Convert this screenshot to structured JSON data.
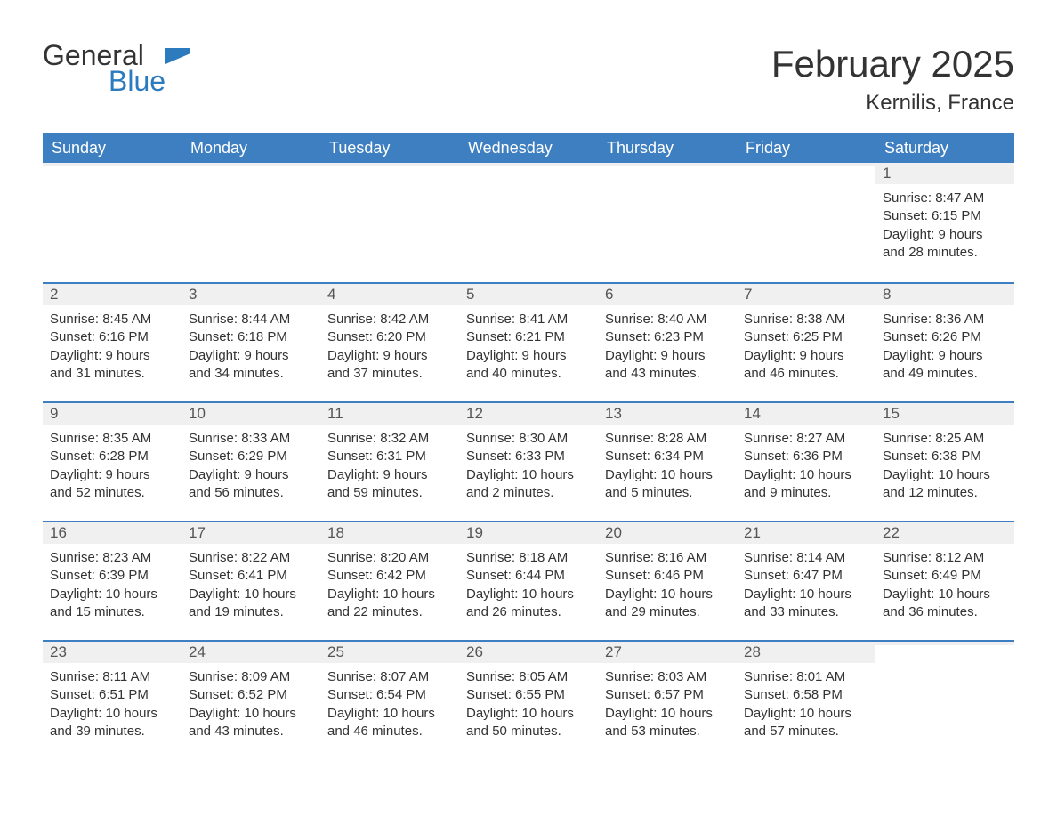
{
  "brand": {
    "name1": "General",
    "name2": "Blue",
    "icon_color": "#2c7bbf"
  },
  "title": {
    "month": "February 2025",
    "location": "Kernilis, France"
  },
  "colors": {
    "header_bg": "#3d7fc1",
    "header_fg": "#ffffff",
    "daynum_bg": "#f0f0f0",
    "daynum_border": "#3d7fc1",
    "text": "#333333",
    "background": "#ffffff"
  },
  "day_headers": [
    "Sunday",
    "Monday",
    "Tuesday",
    "Wednesday",
    "Thursday",
    "Friday",
    "Saturday"
  ],
  "weeks": [
    [
      {
        "day": "",
        "sunrise": "",
        "sunset": "",
        "daylight1": "",
        "daylight2": ""
      },
      {
        "day": "",
        "sunrise": "",
        "sunset": "",
        "daylight1": "",
        "daylight2": ""
      },
      {
        "day": "",
        "sunrise": "",
        "sunset": "",
        "daylight1": "",
        "daylight2": ""
      },
      {
        "day": "",
        "sunrise": "",
        "sunset": "",
        "daylight1": "",
        "daylight2": ""
      },
      {
        "day": "",
        "sunrise": "",
        "sunset": "",
        "daylight1": "",
        "daylight2": ""
      },
      {
        "day": "",
        "sunrise": "",
        "sunset": "",
        "daylight1": "",
        "daylight2": ""
      },
      {
        "day": "1",
        "sunrise": "Sunrise: 8:47 AM",
        "sunset": "Sunset: 6:15 PM",
        "daylight1": "Daylight: 9 hours",
        "daylight2": "and 28 minutes."
      }
    ],
    [
      {
        "day": "2",
        "sunrise": "Sunrise: 8:45 AM",
        "sunset": "Sunset: 6:16 PM",
        "daylight1": "Daylight: 9 hours",
        "daylight2": "and 31 minutes."
      },
      {
        "day": "3",
        "sunrise": "Sunrise: 8:44 AM",
        "sunset": "Sunset: 6:18 PM",
        "daylight1": "Daylight: 9 hours",
        "daylight2": "and 34 minutes."
      },
      {
        "day": "4",
        "sunrise": "Sunrise: 8:42 AM",
        "sunset": "Sunset: 6:20 PM",
        "daylight1": "Daylight: 9 hours",
        "daylight2": "and 37 minutes."
      },
      {
        "day": "5",
        "sunrise": "Sunrise: 8:41 AM",
        "sunset": "Sunset: 6:21 PM",
        "daylight1": "Daylight: 9 hours",
        "daylight2": "and 40 minutes."
      },
      {
        "day": "6",
        "sunrise": "Sunrise: 8:40 AM",
        "sunset": "Sunset: 6:23 PM",
        "daylight1": "Daylight: 9 hours",
        "daylight2": "and 43 minutes."
      },
      {
        "day": "7",
        "sunrise": "Sunrise: 8:38 AM",
        "sunset": "Sunset: 6:25 PM",
        "daylight1": "Daylight: 9 hours",
        "daylight2": "and 46 minutes."
      },
      {
        "day": "8",
        "sunrise": "Sunrise: 8:36 AM",
        "sunset": "Sunset: 6:26 PM",
        "daylight1": "Daylight: 9 hours",
        "daylight2": "and 49 minutes."
      }
    ],
    [
      {
        "day": "9",
        "sunrise": "Sunrise: 8:35 AM",
        "sunset": "Sunset: 6:28 PM",
        "daylight1": "Daylight: 9 hours",
        "daylight2": "and 52 minutes."
      },
      {
        "day": "10",
        "sunrise": "Sunrise: 8:33 AM",
        "sunset": "Sunset: 6:29 PM",
        "daylight1": "Daylight: 9 hours",
        "daylight2": "and 56 minutes."
      },
      {
        "day": "11",
        "sunrise": "Sunrise: 8:32 AM",
        "sunset": "Sunset: 6:31 PM",
        "daylight1": "Daylight: 9 hours",
        "daylight2": "and 59 minutes."
      },
      {
        "day": "12",
        "sunrise": "Sunrise: 8:30 AM",
        "sunset": "Sunset: 6:33 PM",
        "daylight1": "Daylight: 10 hours",
        "daylight2": "and 2 minutes."
      },
      {
        "day": "13",
        "sunrise": "Sunrise: 8:28 AM",
        "sunset": "Sunset: 6:34 PM",
        "daylight1": "Daylight: 10 hours",
        "daylight2": "and 5 minutes."
      },
      {
        "day": "14",
        "sunrise": "Sunrise: 8:27 AM",
        "sunset": "Sunset: 6:36 PM",
        "daylight1": "Daylight: 10 hours",
        "daylight2": "and 9 minutes."
      },
      {
        "day": "15",
        "sunrise": "Sunrise: 8:25 AM",
        "sunset": "Sunset: 6:38 PM",
        "daylight1": "Daylight: 10 hours",
        "daylight2": "and 12 minutes."
      }
    ],
    [
      {
        "day": "16",
        "sunrise": "Sunrise: 8:23 AM",
        "sunset": "Sunset: 6:39 PM",
        "daylight1": "Daylight: 10 hours",
        "daylight2": "and 15 minutes."
      },
      {
        "day": "17",
        "sunrise": "Sunrise: 8:22 AM",
        "sunset": "Sunset: 6:41 PM",
        "daylight1": "Daylight: 10 hours",
        "daylight2": "and 19 minutes."
      },
      {
        "day": "18",
        "sunrise": "Sunrise: 8:20 AM",
        "sunset": "Sunset: 6:42 PM",
        "daylight1": "Daylight: 10 hours",
        "daylight2": "and 22 minutes."
      },
      {
        "day": "19",
        "sunrise": "Sunrise: 8:18 AM",
        "sunset": "Sunset: 6:44 PM",
        "daylight1": "Daylight: 10 hours",
        "daylight2": "and 26 minutes."
      },
      {
        "day": "20",
        "sunrise": "Sunrise: 8:16 AM",
        "sunset": "Sunset: 6:46 PM",
        "daylight1": "Daylight: 10 hours",
        "daylight2": "and 29 minutes."
      },
      {
        "day": "21",
        "sunrise": "Sunrise: 8:14 AM",
        "sunset": "Sunset: 6:47 PM",
        "daylight1": "Daylight: 10 hours",
        "daylight2": "and 33 minutes."
      },
      {
        "day": "22",
        "sunrise": "Sunrise: 8:12 AM",
        "sunset": "Sunset: 6:49 PM",
        "daylight1": "Daylight: 10 hours",
        "daylight2": "and 36 minutes."
      }
    ],
    [
      {
        "day": "23",
        "sunrise": "Sunrise: 8:11 AM",
        "sunset": "Sunset: 6:51 PM",
        "daylight1": "Daylight: 10 hours",
        "daylight2": "and 39 minutes."
      },
      {
        "day": "24",
        "sunrise": "Sunrise: 8:09 AM",
        "sunset": "Sunset: 6:52 PM",
        "daylight1": "Daylight: 10 hours",
        "daylight2": "and 43 minutes."
      },
      {
        "day": "25",
        "sunrise": "Sunrise: 8:07 AM",
        "sunset": "Sunset: 6:54 PM",
        "daylight1": "Daylight: 10 hours",
        "daylight2": "and 46 minutes."
      },
      {
        "day": "26",
        "sunrise": "Sunrise: 8:05 AM",
        "sunset": "Sunset: 6:55 PM",
        "daylight1": "Daylight: 10 hours",
        "daylight2": "and 50 minutes."
      },
      {
        "day": "27",
        "sunrise": "Sunrise: 8:03 AM",
        "sunset": "Sunset: 6:57 PM",
        "daylight1": "Daylight: 10 hours",
        "daylight2": "and 53 minutes."
      },
      {
        "day": "28",
        "sunrise": "Sunrise: 8:01 AM",
        "sunset": "Sunset: 6:58 PM",
        "daylight1": "Daylight: 10 hours",
        "daylight2": "and 57 minutes."
      },
      {
        "day": "",
        "sunrise": "",
        "sunset": "",
        "daylight1": "",
        "daylight2": ""
      }
    ]
  ]
}
